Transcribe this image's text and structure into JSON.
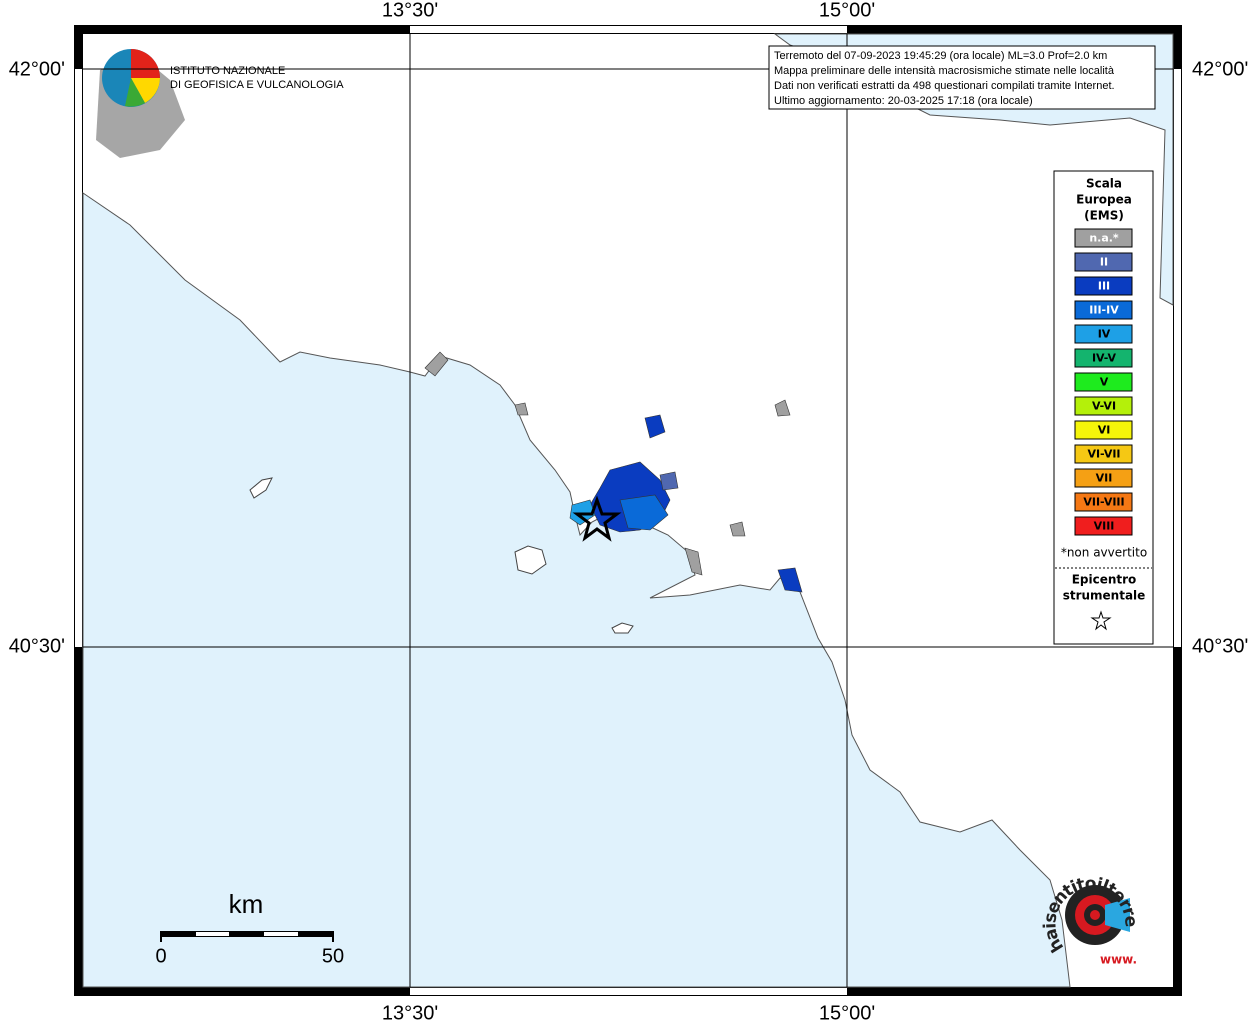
{
  "map": {
    "lon_labels": [
      "13°30'",
      "15°00'"
    ],
    "lat_labels": [
      "42°00'",
      "40°30'"
    ],
    "info": [
      "Terremoto del 07-09-2023 19:45:29 (ora locale) ML=3.0 Prof=2.0 km",
      "Mappa preliminare delle intensità macrosismiche stimate nelle località",
      "Dati non verificati estratti da 498 questionari compilati tramite Internet.",
      "Ultimo aggiornamento: 20-03-2025 17:18 (ora locale)"
    ],
    "logo": [
      "ISTITUTO NAZIONALE",
      "DI GEOFISICA E VULCANOLOGIA"
    ],
    "legend": {
      "title": [
        "Scala",
        "Europea",
        "(EMS)"
      ],
      "classes": [
        {
          "label": "n.a.*",
          "color": "#a0a0a0"
        },
        {
          "label": "II",
          "color": "#5068b0"
        },
        {
          "label": "III",
          "color": "#0a3cc0"
        },
        {
          "label": "III-IV",
          "color": "#0a6ad8"
        },
        {
          "label": "IV",
          "color": "#1ea0e6"
        },
        {
          "label": "IV-V",
          "color": "#14b46e"
        },
        {
          "label": "V",
          "color": "#1eeb1e"
        },
        {
          "label": "V-VI",
          "color": "#b4f00a"
        },
        {
          "label": "VI",
          "color": "#f5f50a"
        },
        {
          "label": "VI-VII",
          "color": "#f5c814"
        },
        {
          "label": "VII",
          "color": "#f5a014"
        },
        {
          "label": "VII-VIII",
          "color": "#f57814"
        },
        {
          "label": "VIII",
          "color": "#f01e1e"
        }
      ],
      "note": "*non avvertito",
      "epicenter": [
        "Epicentro",
        "strumentale"
      ]
    },
    "scale": {
      "unit": "km",
      "start": "0",
      "end": "50"
    },
    "badge": {
      "text": "haisentitoilterremoto.it",
      "prefix": "www."
    }
  }
}
